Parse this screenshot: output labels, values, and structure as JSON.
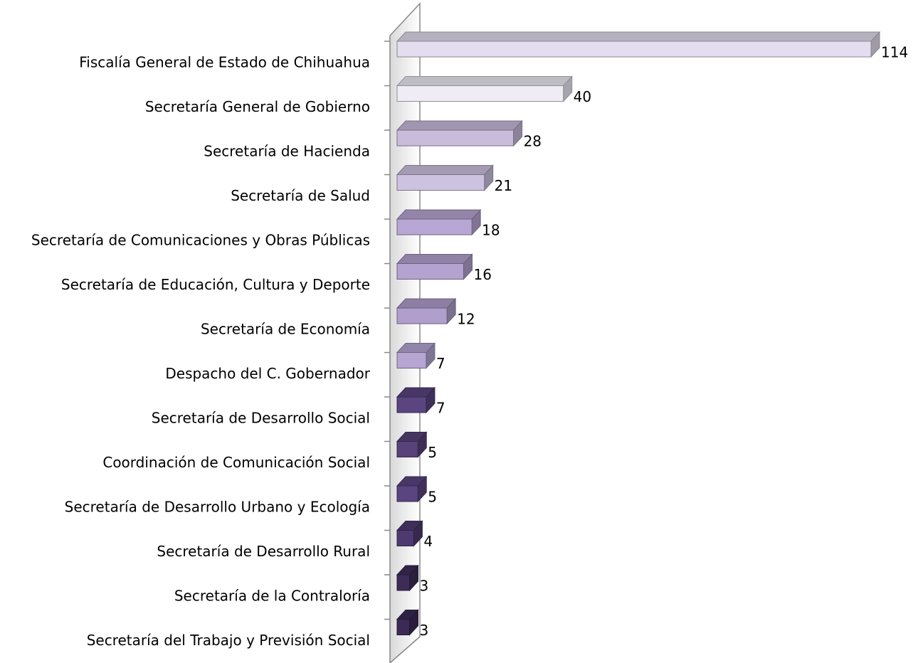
{
  "chart_data": {
    "type": "bar3d-horizontal",
    "categories": [
      "Fiscalía General de Estado de Chihuahua",
      "Secretaría General de Gobierno",
      "Secretaría de Hacienda",
      "Secretaría de Salud",
      "Secretaría de Comunicaciones y Obras Públicas",
      "Secretaría de Educación, Cultura y Deporte",
      "Secretaría de Economía",
      "Despacho del C. Gobernador",
      "Secretaría de Desarrollo Social",
      "Coordinación de Comunicación Social",
      "Secretaría de Desarrollo Urbano y Ecología",
      "Secretaría de Desarrollo Rural",
      "Secretaría de la Contraloría",
      "Secretaría del Trabajo y Previsión Social"
    ],
    "values": [
      114,
      40,
      28,
      21,
      18,
      16,
      12,
      7,
      7,
      5,
      5,
      4,
      3,
      3
    ],
    "colors": [
      "#e4ddef",
      "#efecf5",
      "#c8bbdc",
      "#cdc2e0",
      "#b8a6d4",
      "#b4a2d0",
      "#b09ecc",
      "#b7a6d4",
      "#5a4580",
      "#584279",
      "#5a4580",
      "#4e3a70",
      "#3d2c58",
      "#3a2a55"
    ],
    "xlim": [
      0,
      114
    ]
  }
}
